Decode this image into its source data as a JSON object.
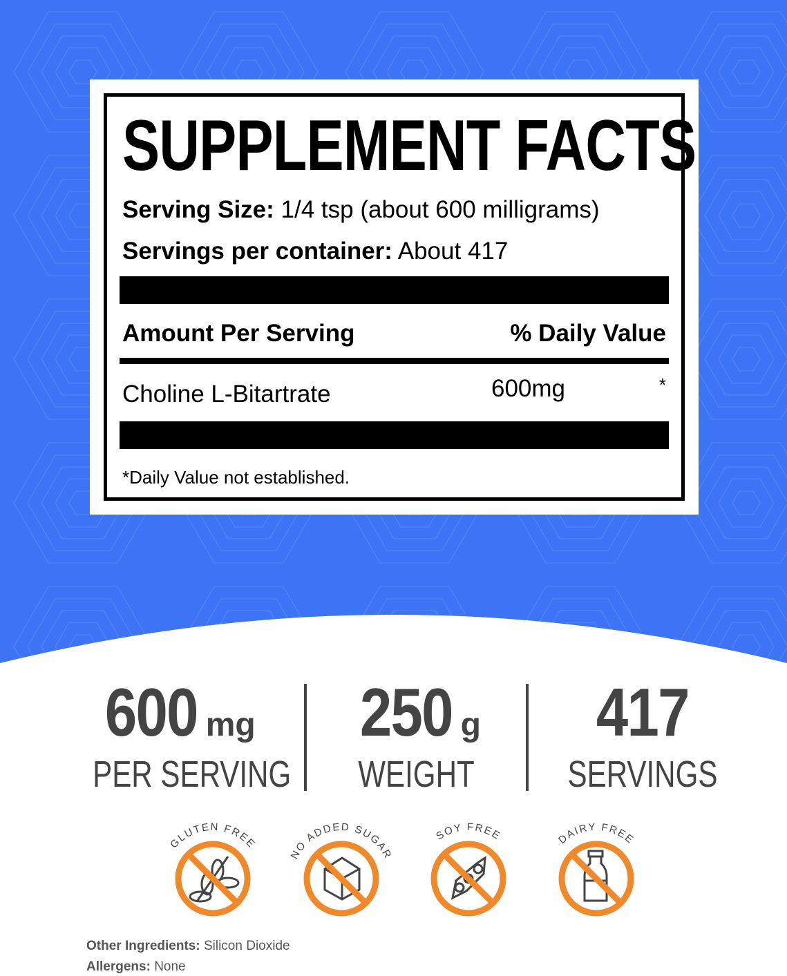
{
  "colors": {
    "background_blue": "#3d74f5",
    "badge_orange": "#f0892a",
    "stat_gray": "#444444"
  },
  "facts": {
    "title": "SUPPLEMENT FACTS",
    "serving_size_label": "Serving Size:",
    "serving_size_value": "1/4 tsp (about 600 milligrams)",
    "servings_label": "Servings per container:",
    "servings_value": "About 417",
    "amount_header": "Amount Per Serving",
    "dv_header": "% Daily Value",
    "rows": [
      {
        "name": "Choline L-Bitartrate",
        "amount": "600mg",
        "dv": "*"
      }
    ],
    "footnote": "*Daily Value not established."
  },
  "stats": [
    {
      "value": "600",
      "unit": "mg",
      "label": "PER SERVING"
    },
    {
      "value": "250",
      "unit": "g",
      "label": "WEIGHT"
    },
    {
      "value": "417",
      "unit": "",
      "label": "SERVINGS"
    }
  ],
  "badges": [
    {
      "label": "GLUTEN FREE",
      "icon": "wheat-icon"
    },
    {
      "label": "NO ADDED SUGAR",
      "icon": "sugar-cube-icon"
    },
    {
      "label": "SOY FREE",
      "icon": "soybean-icon"
    },
    {
      "label": "DAIRY FREE",
      "icon": "milk-bottle-icon"
    }
  ],
  "footer": {
    "other_label": "Other Ingredients:",
    "other_value": "Silicon Dioxide",
    "allergens_label": "Allergens:",
    "allergens_value": "None"
  }
}
